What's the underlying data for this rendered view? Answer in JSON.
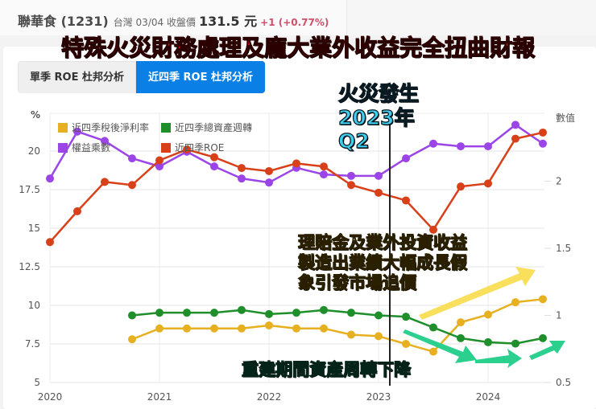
{
  "header": {
    "stock_name": "聯華食 (1231)",
    "market_date_label": "台灣 03/04 收盤價",
    "price": "131.5 元",
    "change": "+1 (+0.77%)"
  },
  "headline": "特殊火災財務處理及龐大業外收益完全扭曲財報",
  "tabs": [
    {
      "label": "單季 ROE 杜邦分析",
      "active": false
    },
    {
      "label": "近四季 ROE 杜邦分析",
      "active": true
    }
  ],
  "annotations": {
    "fire": [
      "火災發生",
      "2023年",
      "Q2"
    ],
    "gain": [
      "理賠金及業外投資收益",
      "製造出業績大幅成長假",
      "象引發市場追價"
    ],
    "turnover": "重建期間資產周轉下降"
  },
  "colors": {
    "net_margin": "#e6b020",
    "asset_turnover": "#1e8f2a",
    "equity_multiplier": "#9b45e8",
    "roe": "#d8401a",
    "tab_active": "#0a7fe6",
    "fire_text": "#3fd0f0",
    "gain_text": "#f6dc3a",
    "turnover_text": "#2bc98a"
  },
  "chart_data": {
    "type": "line",
    "title": "近四季 ROE 杜邦分析",
    "ylabel_left": "%",
    "ylabel_right": "數值",
    "x_ticks": [
      "2020",
      "2021",
      "2022",
      "2023",
      "2024"
    ],
    "left_ticks": [
      "5",
      "7.5",
      "10",
      "12.5",
      "15",
      "17.5",
      "20"
    ],
    "right_ticks": [
      "0.5",
      "1",
      "1.5",
      "2"
    ],
    "ylim_left": [
      5,
      22
    ],
    "ylim_right": [
      0.5,
      2.5
    ],
    "x": [
      "2020Q1",
      "2020Q2",
      "2020Q3",
      "2020Q4",
      "2021Q1",
      "2021Q2",
      "2021Q3",
      "2021Q4",
      "2022Q1",
      "2022Q2",
      "2022Q3",
      "2022Q4",
      "2023Q1",
      "2023Q2",
      "2023Q3",
      "2023Q4",
      "2024Q1",
      "2024Q2",
      "2024Q3"
    ],
    "series": [
      {
        "name": "近四季稅後淨利率",
        "axis": "left",
        "values": [
          null,
          null,
          null,
          7.8,
          8.5,
          8.5,
          8.5,
          8.5,
          8.7,
          8.5,
          8.5,
          8.1,
          8.0,
          7.5,
          7.0,
          8.9,
          9.4,
          10.2,
          10.4
        ]
      },
      {
        "name": "近四季總資產週轉",
        "axis": "right",
        "values": [
          null,
          null,
          null,
          1.0,
          1.02,
          1.02,
          1.02,
          1.04,
          1.01,
          1.02,
          1.04,
          1.02,
          1.0,
          0.99,
          0.91,
          0.83,
          0.8,
          0.79,
          0.83
        ]
      },
      {
        "name": "權益乘數",
        "axis": "right",
        "values": [
          2.02,
          2.37,
          2.3,
          2.17,
          2.11,
          2.22,
          2.11,
          2.02,
          1.99,
          2.1,
          2.05,
          2.04,
          2.04,
          2.17,
          2.28,
          2.26,
          2.26,
          2.42,
          2.28
        ]
      },
      {
        "name": "近四季ROE",
        "axis": "left",
        "values": [
          14.1,
          16.1,
          18.0,
          17.8,
          19.4,
          20.1,
          19.6,
          18.9,
          18.7,
          19.2,
          19.0,
          17.8,
          17.3,
          16.8,
          14.9,
          17.7,
          17.9,
          20.8,
          21.2
        ]
      }
    ],
    "vertical_marker": {
      "x": "2023Q2",
      "label": "火災發生 2023年 Q2"
    },
    "grid": true,
    "legend_position": "top-left"
  }
}
